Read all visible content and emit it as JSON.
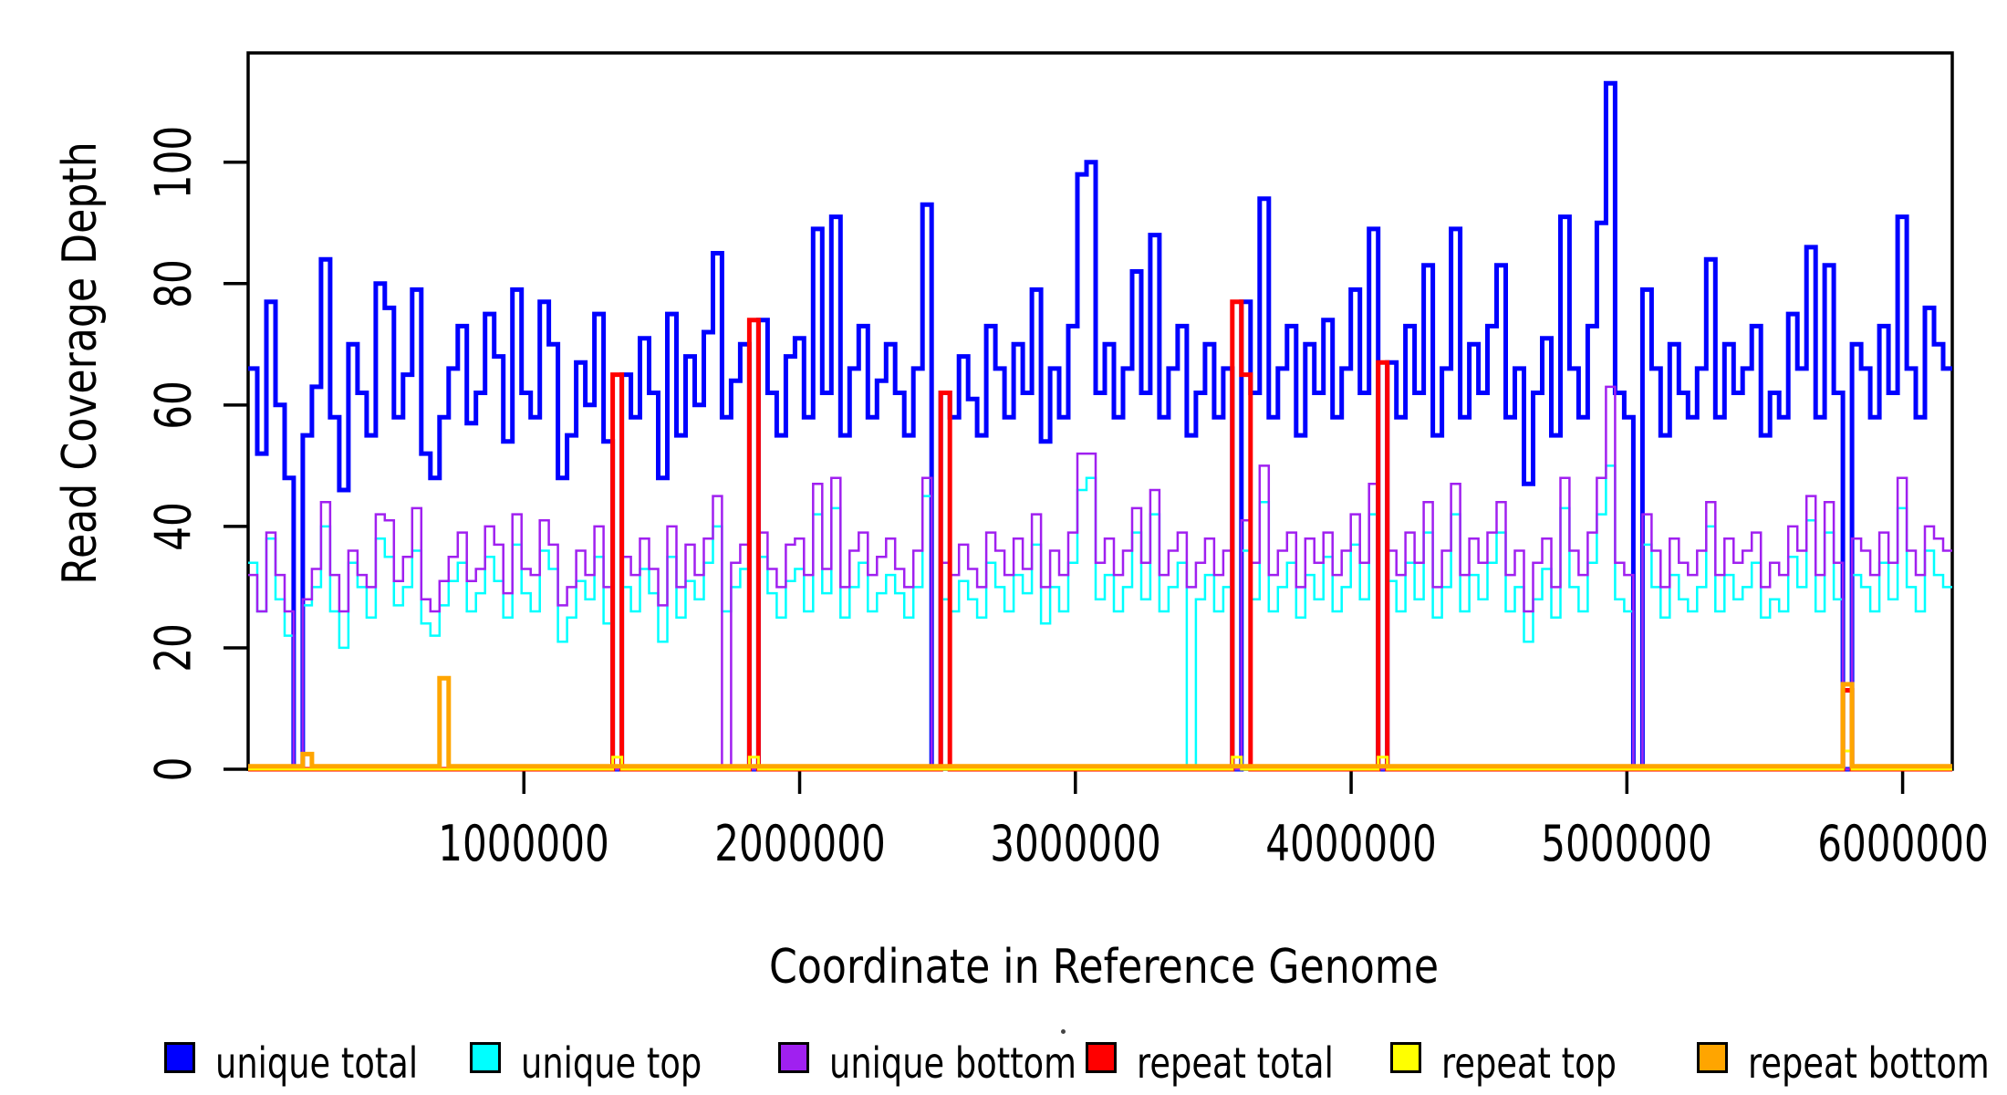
{
  "axes": {
    "x_tick_labels": [
      "1000000",
      "2000000",
      "3000000",
      "4000000",
      "5000000",
      "6000000"
    ],
    "y_tick_labels": [
      "0",
      "20",
      "40",
      "60",
      "80",
      "100"
    ],
    "x_title": "Coordinate in Reference Genome",
    "y_title": "Read Coverage Depth"
  },
  "legend": {
    "items": [
      {
        "label": "unique total",
        "color": "#0000FF"
      },
      {
        "label": "unique top",
        "color": "#00FFFF"
      },
      {
        "label": "unique bottom",
        "color": "#A020F0"
      },
      {
        "label": "repeat total",
        "color": "#FF0000"
      },
      {
        "label": "repeat top",
        "color": "#FFFF00"
      },
      {
        "label": "repeat bottom",
        "color": "#FFA500"
      }
    ]
  },
  "chart_data": {
    "type": "line",
    "subtype": "step",
    "title": "",
    "xlabel": "Coordinate in Reference Genome",
    "ylabel": "Read Coverage Depth",
    "xlim": [
      0,
      6180000
    ],
    "ylim": [
      0,
      118
    ],
    "grid": false,
    "legend_position": "bottom",
    "x_ticks": [
      1000000,
      2000000,
      3000000,
      4000000,
      5000000,
      6000000
    ],
    "y_ticks": [
      0,
      20,
      40,
      60,
      80,
      100
    ],
    "bin_size": 33000,
    "series": [
      {
        "name": "unique total",
        "color": "#0000FF",
        "lwd": 5,
        "values": [
          66,
          52,
          77,
          60,
          48,
          0,
          55,
          63,
          84,
          58,
          46,
          70,
          62,
          55,
          80,
          76,
          58,
          65,
          79,
          52,
          48,
          58,
          66,
          73,
          57,
          62,
          75,
          68,
          54,
          79,
          62,
          58,
          77,
          70,
          48,
          55,
          67,
          60,
          75,
          54,
          0,
          65,
          58,
          71,
          62,
          48,
          75,
          55,
          68,
          60,
          72,
          85,
          58,
          64,
          70,
          0,
          74,
          62,
          55,
          68,
          71,
          58,
          89,
          62,
          91,
          55,
          66,
          73,
          58,
          64,
          70,
          62,
          55,
          66,
          93,
          0,
          62,
          58,
          68,
          61,
          55,
          73,
          66,
          58,
          70,
          62,
          79,
          54,
          66,
          58,
          73,
          98,
          100,
          62,
          70,
          58,
          66,
          82,
          62,
          88,
          58,
          66,
          73,
          55,
          62,
          70,
          58,
          66,
          0,
          77,
          62,
          94,
          58,
          66,
          73,
          55,
          70,
          62,
          74,
          58,
          66,
          79,
          62,
          89,
          0,
          67,
          58,
          73,
          62,
          83,
          55,
          66,
          89,
          58,
          70,
          62,
          73,
          83,
          58,
          66,
          47,
          62,
          71,
          55,
          91,
          66,
          58,
          73,
          90,
          113,
          62,
          58,
          0,
          79,
          66,
          55,
          70,
          62,
          58,
          66,
          84,
          58,
          70,
          62,
          66,
          73,
          55,
          62,
          58,
          75,
          66,
          86,
          58,
          83,
          62,
          0,
          70,
          66,
          58,
          73,
          62,
          91,
          66,
          58,
          76,
          70,
          66
        ]
      },
      {
        "name": "unique top",
        "color": "#00FFFF",
        "lwd": 2.5,
        "values": [
          34,
          26,
          38,
          28,
          22,
          0,
          27,
          30,
          40,
          26,
          20,
          34,
          30,
          25,
          38,
          35,
          27,
          30,
          36,
          24,
          22,
          27,
          31,
          34,
          26,
          29,
          35,
          31,
          25,
          37,
          29,
          26,
          36,
          33,
          21,
          25,
          31,
          28,
          35,
          24,
          0,
          30,
          26,
          33,
          29,
          21,
          35,
          25,
          31,
          28,
          34,
          40,
          26,
          30,
          33,
          0,
          35,
          29,
          25,
          31,
          33,
          26,
          42,
          29,
          43,
          25,
          30,
          34,
          26,
          29,
          32,
          29,
          25,
          30,
          45,
          0,
          28,
          26,
          31,
          28,
          25,
          34,
          30,
          26,
          32,
          29,
          37,
          24,
          30,
          26,
          34,
          46,
          48,
          28,
          32,
          26,
          30,
          39,
          28,
          42,
          26,
          30,
          34,
          0,
          28,
          32,
          26,
          30,
          0,
          36,
          28,
          44,
          26,
          30,
          34,
          25,
          32,
          28,
          35,
          26,
          30,
          37,
          28,
          42,
          0,
          31,
          26,
          34,
          28,
          39,
          25,
          30,
          42,
          26,
          32,
          28,
          34,
          39,
          26,
          30,
          21,
          28,
          33,
          25,
          43,
          30,
          26,
          34,
          42,
          50,
          28,
          26,
          0,
          37,
          30,
          25,
          32,
          28,
          26,
          30,
          40,
          26,
          32,
          28,
          30,
          34,
          25,
          28,
          26,
          35,
          30,
          41,
          26,
          39,
          28,
          0,
          32,
          30,
          26,
          34,
          28,
          43,
          30,
          26,
          36,
          32,
          30
        ]
      },
      {
        "name": "unique bottom",
        "color": "#A020F0",
        "lwd": 2.5,
        "values": [
          32,
          26,
          39,
          32,
          26,
          0,
          28,
          33,
          44,
          32,
          26,
          36,
          32,
          30,
          42,
          41,
          31,
          35,
          43,
          28,
          26,
          31,
          35,
          39,
          31,
          33,
          40,
          37,
          29,
          42,
          33,
          32,
          41,
          37,
          27,
          30,
          36,
          32,
          40,
          30,
          0,
          35,
          32,
          38,
          33,
          27,
          40,
          30,
          37,
          32,
          38,
          45,
          0,
          34,
          37,
          0,
          39,
          33,
          30,
          37,
          38,
          32,
          47,
          33,
          48,
          30,
          36,
          39,
          32,
          35,
          38,
          33,
          30,
          36,
          48,
          0,
          34,
          32,
          37,
          33,
          30,
          39,
          36,
          32,
          38,
          33,
          42,
          30,
          36,
          32,
          39,
          52,
          52,
          34,
          38,
          32,
          36,
          43,
          34,
          46,
          32,
          36,
          39,
          30,
          34,
          38,
          32,
          36,
          0,
          41,
          34,
          50,
          32,
          36,
          39,
          30,
          38,
          34,
          39,
          32,
          36,
          42,
          34,
          47,
          0,
          36,
          32,
          39,
          34,
          44,
          30,
          36,
          47,
          32,
          38,
          34,
          39,
          44,
          32,
          36,
          26,
          34,
          38,
          30,
          48,
          36,
          32,
          39,
          48,
          63,
          34,
          32,
          0,
          42,
          36,
          30,
          38,
          34,
          32,
          36,
          44,
          32,
          38,
          34,
          36,
          39,
          30,
          34,
          32,
          40,
          36,
          45,
          32,
          44,
          34,
          0,
          38,
          36,
          32,
          39,
          34,
          48,
          36,
          32,
          40,
          38,
          36
        ]
      },
      {
        "name": "repeat total",
        "color": "#FF0000",
        "lwd": 5,
        "baseline": 0,
        "n_bins": 187,
        "spikes": {
          "40": 65,
          "55": 74,
          "76": 62,
          "108": 77,
          "109": 65,
          "124": 67,
          "175": 13
        }
      },
      {
        "name": "repeat top",
        "color": "#FFFF00",
        "lwd": 3,
        "baseline": 0,
        "n_bins": 187,
        "spikes": {
          "40": 2,
          "55": 2,
          "108": 2,
          "124": 2,
          "175": 3
        }
      },
      {
        "name": "repeat bottom",
        "color": "#FFA500",
        "lwd": 5,
        "baseline": 0.5,
        "n_bins": 187,
        "spikes": {
          "6": 2.5,
          "21": 15,
          "175": 14
        }
      }
    ]
  }
}
